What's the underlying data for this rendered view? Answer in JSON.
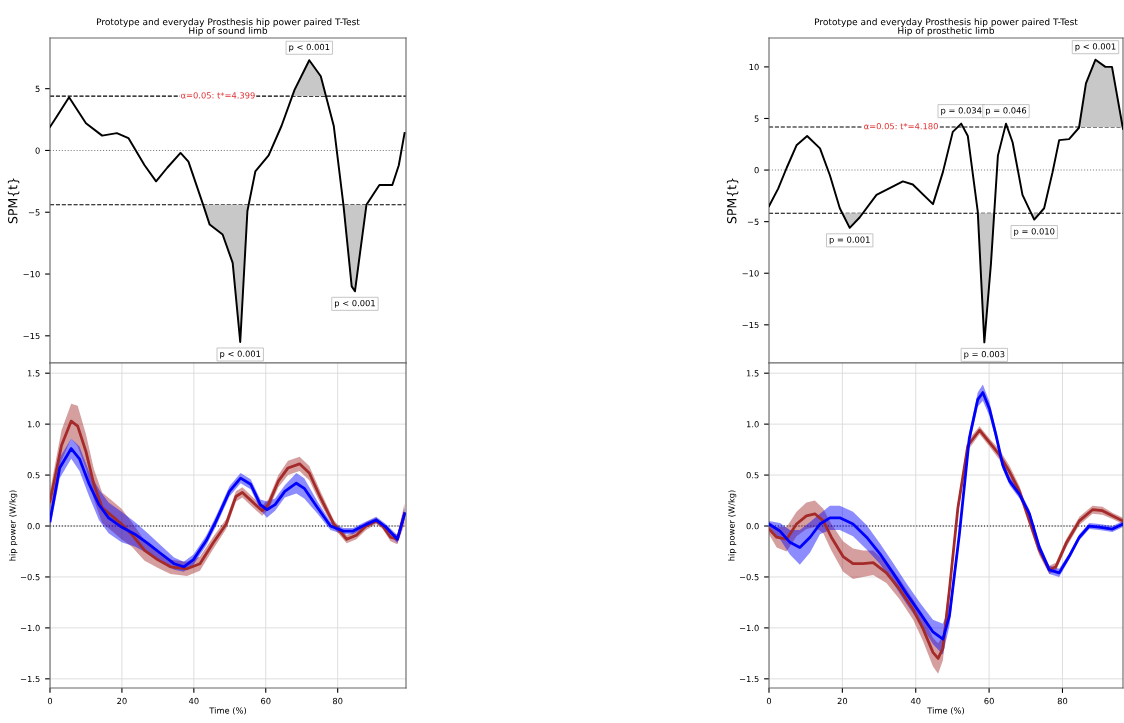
{
  "chart_data": [
    {
      "type": "line",
      "title": "Prototype and everyday Prosthesis hip power paired T-Test",
      "subtitle": "Hip of sound limb",
      "ylabel": "SPM{t}",
      "xlim": [
        0,
        99
      ],
      "ylim": [
        -17.2,
        9.1
      ],
      "yticks": [
        -15,
        -10,
        -5,
        0,
        5
      ],
      "tick_labels": "y",
      "grid": false,
      "series": [
        {
          "color": "#000000",
          "x": [
            0,
            1.8,
            5.3,
            10,
            14.5,
            18.6,
            21.8,
            26.3,
            29.5,
            32.6,
            36.3,
            38.5,
            42.6,
            44.4,
            48,
            50.8,
            52.9,
            54.9,
            57.1,
            60.8,
            64.4,
            68,
            72.1,
            75.3,
            78.9,
            81.6,
            83.9,
            84.8,
            88,
            91.6,
            95.2,
            97,
            98.6
          ],
          "values": [
            1.9,
            2.7,
            4.3,
            2.2,
            1.2,
            1.4,
            1.0,
            -1.2,
            -2.5,
            -1.4,
            -0.2,
            -0.9,
            -4.4,
            -6.0,
            -6.8,
            -9.1,
            -15.5,
            -4.9,
            -1.7,
            -0.4,
            2.0,
            4.9,
            7.3,
            6.0,
            2.0,
            -4.4,
            -11.0,
            -11.4,
            -4.4,
            -2.8,
            -2.8,
            -1.2,
            1.4
          ]
        },
        {
          "type": "area",
          "color": "#c8c8c8",
          "x": [
            67.3,
            68,
            72.1,
            75.3,
            76.8
          ],
          "values": [
            4.4,
            4.9,
            7.3,
            6.0,
            4.4
          ]
        },
        {
          "type": "area",
          "color": "#c8c8c8",
          "x": [
            42.6,
            44.4,
            48,
            50.8,
            52.9,
            54.9,
            55.2
          ],
          "values": [
            -4.4,
            -6.0,
            -6.8,
            -9.1,
            -15.5,
            -4.9,
            -4.4
          ]
        },
        {
          "type": "area",
          "color": "#c8c8c8",
          "x": [
            81.6,
            83.9,
            84.8,
            88
          ],
          "values": [
            -4.4,
            -11.0,
            -11.4,
            -4.4
          ]
        }
      ],
      "ref_lines": [
        {
          "axis": "y",
          "value": 4.399,
          "line_style": "dashed",
          "color": "#000000"
        },
        {
          "axis": "y",
          "value": -4.399,
          "line_style": "dashed",
          "color": "#000000"
        },
        {
          "axis": "y",
          "value": 0,
          "line_style": "dotted",
          "color": "#808080"
        }
      ],
      "annotations": [
        {
          "text": "α=0.05: t*=4.399",
          "x": 46.7,
          "y": 4.399
        },
        {
          "text": "p < 0.001",
          "x": 72.1,
          "y": 7.3
        },
        {
          "text": "p < 0.001",
          "x": 52.9,
          "y": -15.5
        },
        {
          "text": "p < 0.001",
          "x": 84.8,
          "y": -11.4
        }
      ]
    },
    {
      "type": "line",
      "title": "Prototype and everyday Prosthesis hip power paired T-Test",
      "subtitle": "Hip of prosthetic limb",
      "ylabel": "SPM{t}",
      "xlim": [
        0,
        96.5
      ],
      "ylim": [
        -18.7,
        12.8
      ],
      "yticks": [
        -15,
        -10,
        -5,
        0,
        5,
        10
      ],
      "tick_labels": "y",
      "grid": false,
      "series": [
        {
          "color": "#000000",
          "x": [
            0,
            2.5,
            4.8,
            7.5,
            10.4,
            13.9,
            16.6,
            19.3,
            22,
            24.7,
            29.3,
            36.5,
            39.2,
            44.7,
            47.4,
            50.1,
            52.4,
            54.2,
            56.9,
            58.7,
            60.5,
            62.4,
            64.6,
            66.4,
            69.1,
            72.3,
            75,
            77.3,
            79.1,
            81.8,
            84.5,
            86.4,
            89,
            91.7,
            93.5,
            96.5
          ],
          "values": [
            -3.5,
            -1.8,
            0.2,
            2.4,
            3.3,
            2.1,
            -0.5,
            -3.7,
            -5.6,
            -4.6,
            -2.4,
            -1.1,
            -1.4,
            -3.3,
            -0.2,
            3.7,
            4.5,
            3.3,
            -4.0,
            -16.7,
            -9.1,
            1.4,
            4.5,
            2.7,
            -2.4,
            -4.8,
            -3.7,
            -0.2,
            2.9,
            3.0,
            4.1,
            8.4,
            10.7,
            10.0,
            10.0,
            4.0
          ]
        },
        {
          "type": "area",
          "color": "#c8c8c8",
          "x": [
            20.1,
            22,
            24.7,
            25.6
          ],
          "values": [
            -4.2,
            -5.6,
            -4.6,
            -4.2
          ]
        },
        {
          "type": "area",
          "color": "#c8c8c8",
          "x": [
            56.9,
            58.7,
            60.5,
            61.4
          ],
          "values": [
            -4.2,
            -16.7,
            -9.1,
            -4.2
          ]
        },
        {
          "type": "area",
          "color": "#c8c8c8",
          "x": [
            71.5,
            72.3,
            73.7
          ],
          "values": [
            -4.2,
            -4.8,
            -4.2
          ]
        },
        {
          "type": "area",
          "color": "#c8c8c8",
          "x": [
            84.5,
            86.4,
            89,
            91.7,
            93.5,
            96.4
          ],
          "values": [
            4.2,
            8.4,
            10.7,
            10.0,
            10.0,
            4.2
          ]
        }
      ],
      "ref_lines": [
        {
          "axis": "y",
          "value": 4.18,
          "line_style": "dashed",
          "color": "#000000"
        },
        {
          "axis": "y",
          "value": -4.18,
          "line_style": "dashed",
          "color": "#000000"
        },
        {
          "axis": "y",
          "value": 0,
          "line_style": "dotted",
          "color": "#808080"
        }
      ],
      "annotations": [
        {
          "text": "α=0.05: t*=4.180",
          "x": 36,
          "y": 4.18
        },
        {
          "text": "p = 0.001",
          "x": 22,
          "y": -5.6
        },
        {
          "text": "p = 0.034",
          "x": 52.4,
          "y": 4.5
        },
        {
          "text": "p = 0.046",
          "x": 64.6,
          "y": 4.5
        },
        {
          "text": "p = 0.010",
          "x": 72.3,
          "y": -4.8
        },
        {
          "text": "p = 0.003",
          "x": 58.7,
          "y": -16.7
        },
        {
          "text": "p < 0.001",
          "x": 89,
          "y": 10.7
        }
      ]
    },
    {
      "type": "line",
      "xlabel": "Time (%)",
      "ylabel": "hip power (W/kg)",
      "xlim": [
        0,
        99
      ],
      "ylim": [
        -1.59,
        1.6
      ],
      "xticks": [
        0,
        20,
        40,
        60,
        80
      ],
      "yticks": [
        {
          "value": -1.5,
          "label": "−1.5"
        },
        {
          "value": -1.0,
          "label": "−1.0"
        },
        {
          "value": -0.5,
          "label": "−0.5"
        },
        {
          "value": 0.0,
          "label": "0.0"
        },
        {
          "value": 0.5,
          "label": "0.5"
        },
        {
          "value": 1.0,
          "label": "1.0"
        },
        {
          "value": 1.5,
          "label": "1.5"
        }
      ],
      "grid": true,
      "series": [
        {
          "color": "#a52a2a",
          "x": [
            0,
            3.2,
            5.9,
            7.7,
            10,
            12.2,
            14.5,
            17.2,
            19.9,
            22.7,
            26.3,
            29.9,
            33.5,
            38.1,
            41.7,
            45.3,
            49,
            51.7,
            53.5,
            56.2,
            59,
            60.7,
            63.5,
            66.2,
            69.4,
            72.1,
            75.2,
            78.9,
            82.5,
            85.2,
            87.9,
            90.7,
            92.5,
            94.7,
            96.6,
            98.6
          ],
          "values": [
            0.24,
            0.79,
            1.03,
            0.98,
            0.73,
            0.41,
            0.18,
            0.1,
            0.02,
            -0.08,
            -0.24,
            -0.33,
            -0.4,
            -0.42,
            -0.37,
            -0.17,
            0.02,
            0.29,
            0.33,
            0.24,
            0.15,
            0.21,
            0.44,
            0.57,
            0.61,
            0.52,
            0.28,
            0.02,
            -0.13,
            -0.09,
            0.0,
            0.05,
            0.0,
            -0.11,
            -0.13,
            0.12
          ],
          "lower": [
            0.14,
            0.64,
            0.86,
            0.78,
            0.56,
            0.26,
            0.03,
            -0.05,
            -0.13,
            -0.2,
            -0.34,
            -0.41,
            -0.47,
            -0.49,
            -0.44,
            -0.23,
            -0.03,
            0.24,
            0.28,
            0.19,
            0.1,
            0.16,
            0.38,
            0.5,
            0.54,
            0.45,
            0.22,
            -0.02,
            -0.17,
            -0.13,
            -0.04,
            0.02,
            -0.03,
            -0.15,
            -0.18,
            0.02
          ],
          "upper": [
            0.34,
            0.94,
            1.2,
            1.18,
            0.9,
            0.56,
            0.33,
            0.25,
            0.17,
            0.04,
            -0.14,
            -0.25,
            -0.33,
            -0.35,
            -0.3,
            -0.11,
            0.07,
            0.34,
            0.38,
            0.29,
            0.2,
            0.26,
            0.5,
            0.64,
            0.68,
            0.59,
            0.34,
            0.06,
            -0.09,
            -0.05,
            0.04,
            0.08,
            0.03,
            -0.07,
            -0.08,
            0.22
          ]
        },
        {
          "color": "#0000ff",
          "x": [
            0,
            2.7,
            5.9,
            8.2,
            10.9,
            13.6,
            16.3,
            19.9,
            23.6,
            27.2,
            30.8,
            34.5,
            37.2,
            39.9,
            43.5,
            46.2,
            49.9,
            53,
            55.8,
            58.5,
            60.3,
            62.6,
            65.3,
            68.5,
            70.7,
            74.4,
            78,
            81.6,
            84.3,
            87,
            90.7,
            93.4,
            96.6,
            98.6
          ],
          "values": [
            0.05,
            0.57,
            0.76,
            0.66,
            0.41,
            0.21,
            0.08,
            -0.01,
            -0.08,
            -0.17,
            -0.27,
            -0.37,
            -0.4,
            -0.33,
            -0.14,
            0.05,
            0.34,
            0.47,
            0.41,
            0.21,
            0.16,
            0.21,
            0.34,
            0.42,
            0.37,
            0.18,
            0.0,
            -0.05,
            -0.05,
            0.0,
            0.06,
            -0.01,
            -0.13,
            0.12
          ],
          "lower": [
            -0.03,
            0.47,
            0.66,
            0.54,
            0.29,
            0.06,
            -0.07,
            -0.16,
            -0.2,
            -0.27,
            -0.35,
            -0.43,
            -0.45,
            -0.38,
            -0.19,
            0.0,
            0.29,
            0.42,
            0.36,
            0.16,
            0.08,
            0.15,
            0.28,
            0.32,
            0.27,
            0.12,
            -0.04,
            -0.08,
            -0.08,
            -0.03,
            0.03,
            -0.04,
            -0.17,
            0.06
          ],
          "upper": [
            0.13,
            0.67,
            0.86,
            0.78,
            0.53,
            0.36,
            0.23,
            0.14,
            0.04,
            -0.07,
            -0.19,
            -0.31,
            -0.35,
            -0.28,
            -0.09,
            0.1,
            0.39,
            0.52,
            0.46,
            0.26,
            0.24,
            0.27,
            0.4,
            0.52,
            0.47,
            0.24,
            0.04,
            -0.02,
            -0.02,
            0.03,
            0.09,
            0.02,
            -0.09,
            0.18
          ]
        }
      ],
      "ref_lines": [
        {
          "axis": "y",
          "value": 0,
          "line_style": "dotted",
          "color": "#000000"
        }
      ]
    },
    {
      "type": "line",
      "xlabel": "Time (%)",
      "ylabel": "hip power (W/kg)",
      "xlim": [
        0,
        96.5
      ],
      "ylim": [
        -1.59,
        1.6
      ],
      "xticks": [
        0,
        20,
        40,
        60,
        80
      ],
      "yticks": [
        {
          "value": -1.5,
          "label": "−1.5"
        },
        {
          "value": -1.0,
          "label": "−1.0"
        },
        {
          "value": -0.5,
          "label": "−0.5"
        },
        {
          "value": 0.0,
          "label": "0.0"
        },
        {
          "value": 0.5,
          "label": "0.5"
        },
        {
          "value": 1.0,
          "label": "1.0"
        },
        {
          "value": 1.5,
          "label": "1.5"
        }
      ],
      "grid": true,
      "series": [
        {
          "color": "#a52a2a",
          "x": [
            0,
            2.1,
            4.8,
            7.5,
            10.2,
            12.5,
            14.8,
            17,
            20.2,
            22.9,
            25.6,
            28.4,
            32,
            35.6,
            39.3,
            42,
            44.7,
            46.1,
            47.4,
            49.2,
            51.5,
            54.2,
            57.4,
            60.1,
            62.8,
            65.6,
            68.3,
            71,
            73.7,
            76.4,
            78.2,
            81,
            84.6,
            88.2,
            90.9,
            93.6,
            96.5
          ],
          "values": [
            -0.03,
            -0.11,
            -0.13,
            0.02,
            0.1,
            0.12,
            0.05,
            -0.11,
            -0.3,
            -0.37,
            -0.37,
            -0.36,
            -0.46,
            -0.62,
            -0.82,
            -1.01,
            -1.24,
            -1.3,
            -1.2,
            -0.62,
            0.18,
            0.79,
            0.94,
            0.82,
            0.7,
            0.53,
            0.34,
            0.05,
            -0.24,
            -0.43,
            -0.4,
            -0.17,
            0.05,
            0.16,
            0.15,
            0.1,
            0.05
          ],
          "lower": [
            -0.08,
            -0.21,
            -0.25,
            -0.1,
            -0.03,
            -0.01,
            -0.07,
            -0.24,
            -0.45,
            -0.52,
            -0.5,
            -0.48,
            -0.56,
            -0.72,
            -0.92,
            -1.13,
            -1.38,
            -1.45,
            -1.32,
            -0.7,
            0.12,
            0.74,
            0.9,
            0.78,
            0.65,
            0.47,
            0.29,
            0.0,
            -0.29,
            -0.47,
            -0.44,
            -0.21,
            0.01,
            0.12,
            0.11,
            0.07,
            0.02
          ],
          "upper": [
            0.02,
            -0.01,
            -0.01,
            0.14,
            0.23,
            0.25,
            0.17,
            0.02,
            -0.15,
            -0.22,
            -0.24,
            -0.24,
            -0.36,
            -0.52,
            -0.72,
            -0.89,
            -1.1,
            -1.15,
            -1.08,
            -0.54,
            0.24,
            0.84,
            0.98,
            0.86,
            0.75,
            0.59,
            0.39,
            0.1,
            -0.19,
            -0.39,
            -0.36,
            -0.13,
            0.09,
            0.2,
            0.19,
            0.13,
            0.08
          ]
        },
        {
          "color": "#0000ff",
          "x": [
            0,
            3,
            5.7,
            8.4,
            11.2,
            13.9,
            16.6,
            19.3,
            22.9,
            26.6,
            30.2,
            33.8,
            37.4,
            41.1,
            44.7,
            47.4,
            49.2,
            51.9,
            54.6,
            56.9,
            58.3,
            60.1,
            61.9,
            63.7,
            65.6,
            68.3,
            71,
            73.7,
            76.4,
            79.1,
            81.8,
            84.6,
            87.3,
            90,
            93.6,
            96.5
          ],
          "values": [
            0.02,
            -0.05,
            -0.16,
            -0.21,
            -0.11,
            0.02,
            0.08,
            0.08,
            0.02,
            -0.11,
            -0.27,
            -0.46,
            -0.66,
            -0.85,
            -1.04,
            -1.11,
            -0.88,
            -0.08,
            0.86,
            1.24,
            1.31,
            1.15,
            0.89,
            0.6,
            0.44,
            0.31,
            0.12,
            -0.21,
            -0.43,
            -0.46,
            -0.3,
            -0.11,
            0.0,
            -0.01,
            -0.03,
            0.02
          ],
          "lower": [
            -0.01,
            -0.13,
            -0.28,
            -0.38,
            -0.26,
            -0.08,
            -0.04,
            -0.04,
            -0.1,
            -0.23,
            -0.37,
            -0.56,
            -0.76,
            -0.95,
            -1.16,
            -1.26,
            -0.98,
            -0.14,
            0.8,
            1.17,
            1.23,
            1.08,
            0.84,
            0.56,
            0.4,
            0.27,
            0.08,
            -0.25,
            -0.47,
            -0.5,
            -0.33,
            -0.14,
            -0.03,
            -0.04,
            -0.06,
            -0.01
          ],
          "upper": [
            0.05,
            0.03,
            -0.04,
            -0.04,
            0.04,
            0.12,
            0.2,
            0.2,
            0.14,
            0.01,
            -0.17,
            -0.36,
            -0.56,
            -0.75,
            -0.92,
            -0.96,
            -0.78,
            -0.02,
            0.92,
            1.31,
            1.39,
            1.22,
            0.94,
            0.64,
            0.48,
            0.35,
            0.16,
            -0.17,
            -0.39,
            -0.42,
            -0.27,
            -0.08,
            0.03,
            0.02,
            0.0,
            0.05
          ]
        }
      ],
      "ref_lines": [
        {
          "axis": "y",
          "value": 0,
          "line_style": "dotted",
          "color": "#000000"
        }
      ]
    }
  ]
}
